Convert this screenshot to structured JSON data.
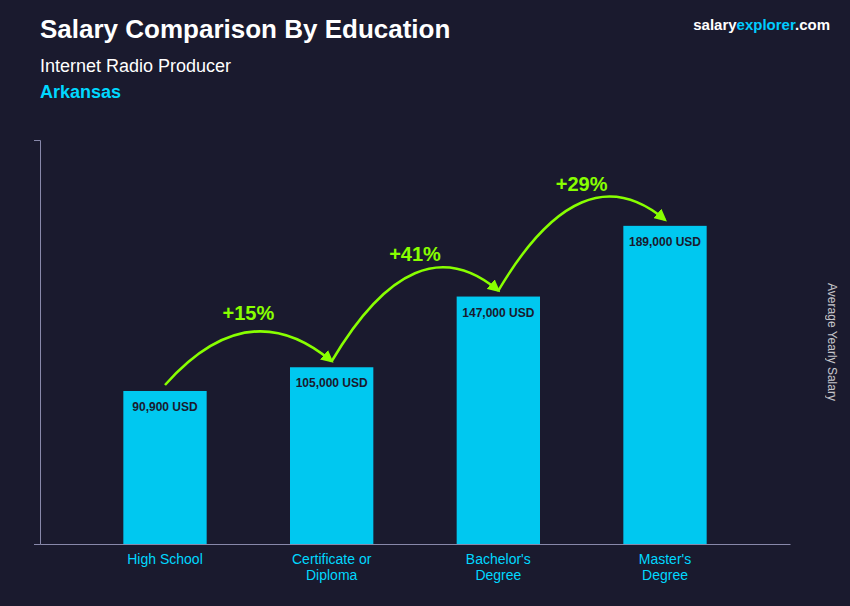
{
  "chart_data": {
    "type": "bar",
    "title": "Salary Comparison By Education",
    "subtitle": "Internet Radio Producer",
    "location": "Arkansas",
    "ylabel": "Average Yearly Salary",
    "categories": [
      "High School",
      "Certificate or\nDiploma",
      "Bachelor's\nDegree",
      "Master's\nDegree"
    ],
    "values": [
      90900,
      105000,
      147000,
      189000
    ],
    "value_labels": [
      "90,900 USD",
      "105,000 USD",
      "147,000 USD",
      "189,000 USD"
    ],
    "data_labels": true,
    "color": "#00c8f0",
    "ylim": [
      0,
      240000
    ],
    "yticks": [],
    "tick_labels": "x",
    "grid": false,
    "annotations": [
      {
        "text": "+15%",
        "color": "#88ff00"
      },
      {
        "text": "+41%",
        "color": "#88ff00"
      },
      {
        "text": "+29%",
        "color": "#88ff00"
      }
    ],
    "brand": [
      {
        "text": "salary",
        "color": "#ffffff"
      },
      {
        "text": "explorer",
        "color": "#00ccff"
      },
      {
        "text": ".com",
        "color": "#ffffff"
      }
    ]
  }
}
